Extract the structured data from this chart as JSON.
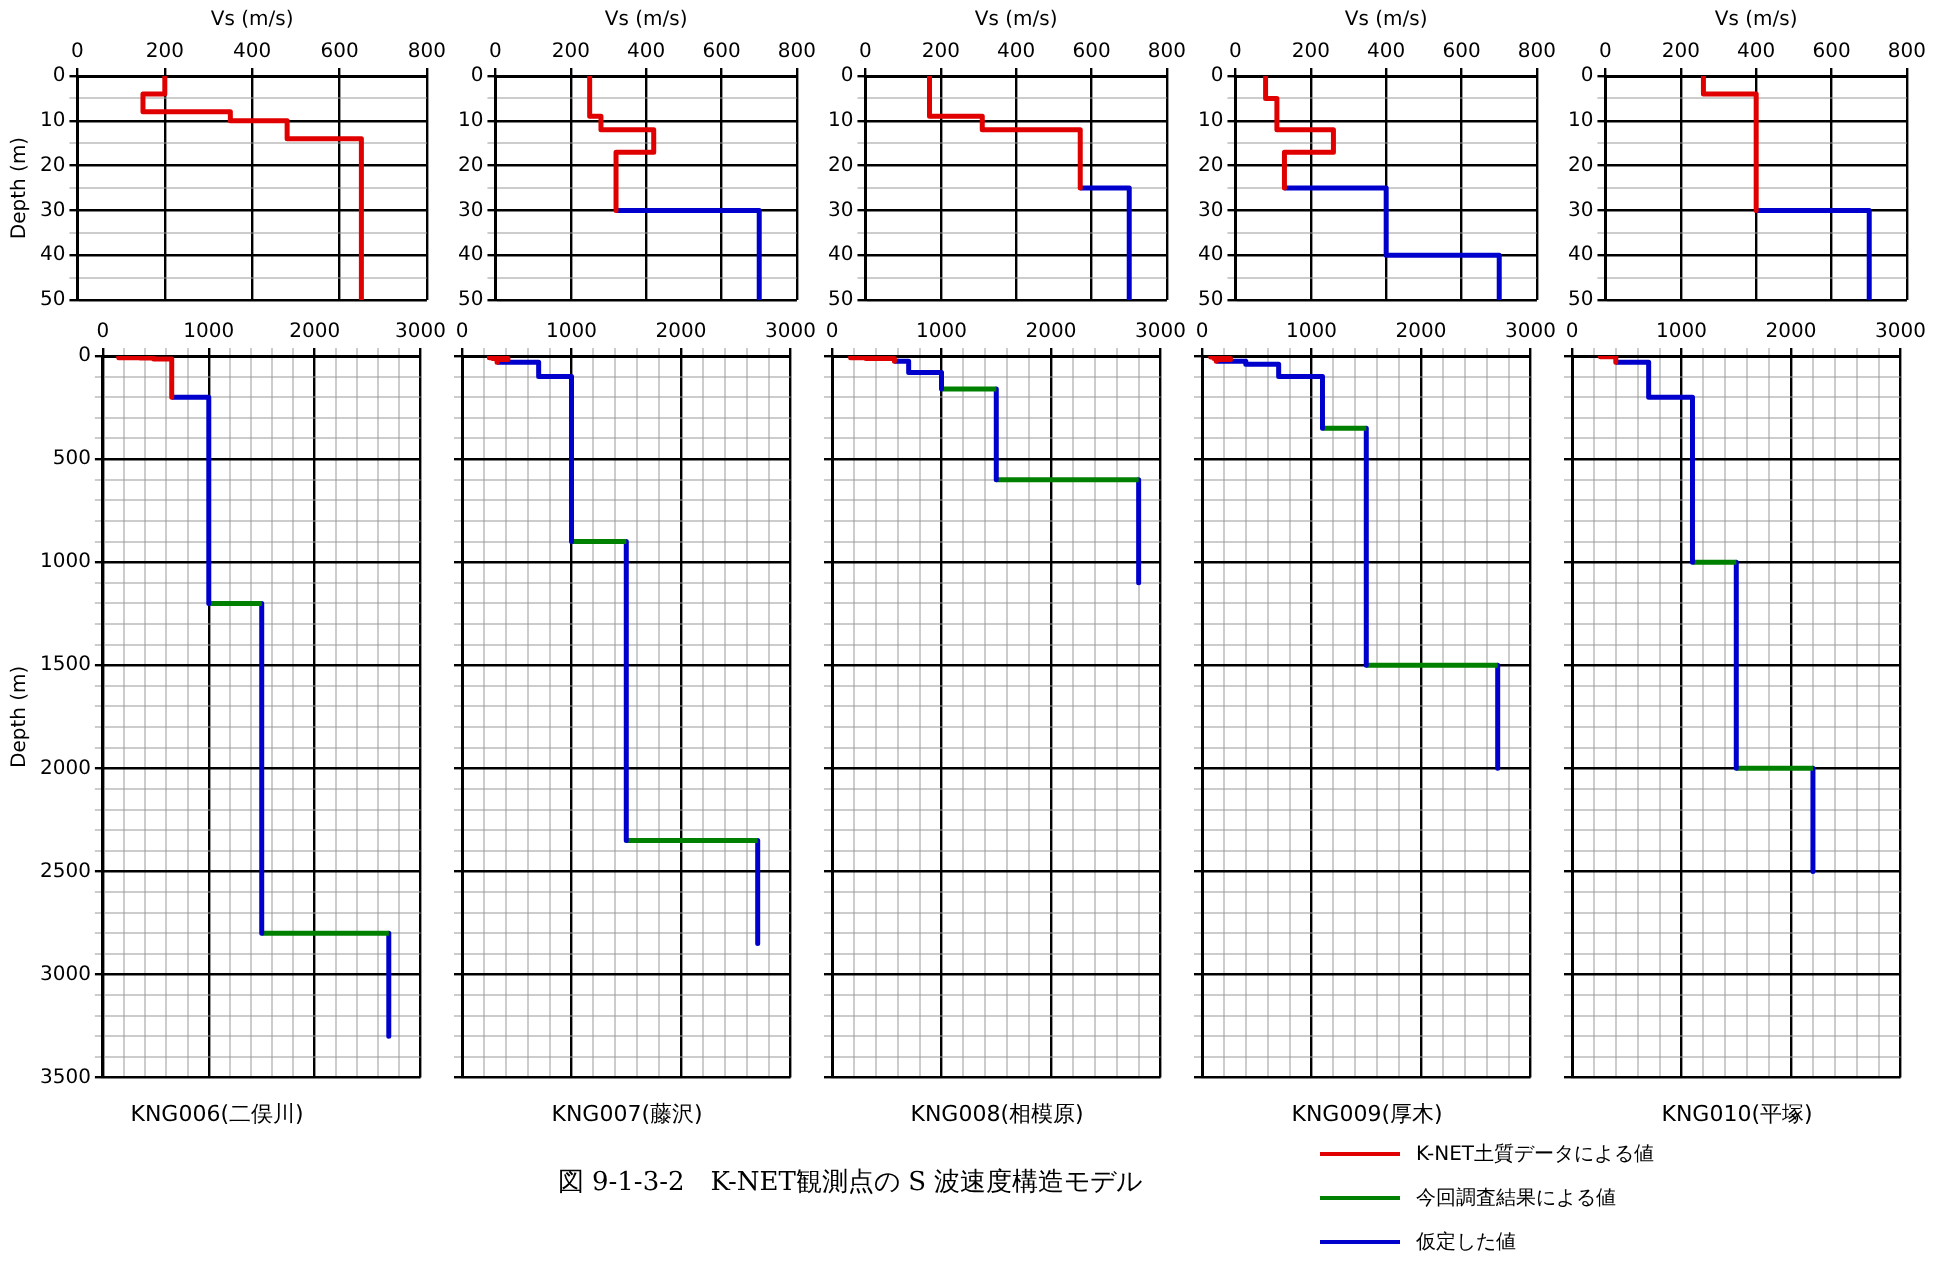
{
  "chart_data": [
    {
      "type": "line",
      "xlabel": "Vs (m/s)",
      "ylabel": "Depth (m)",
      "xlim": [
        0,
        800
      ],
      "ylim": [
        50,
        0
      ],
      "xticks": [
        0,
        200,
        400,
        600,
        800
      ],
      "yticks": [
        0,
        {
          "value": 5,
          "label": null
        },
        10,
        {
          "value": 15,
          "label": null
        },
        20,
        {
          "value": 25,
          "label": null
        },
        30,
        {
          "value": 35,
          "label": null
        },
        40,
        {
          "value": 45,
          "label": null
        },
        50
      ],
      "grid": true,
      "marker": "none",
      "series": [
        {
          "color": "#e00000",
          "x": [
            200,
            200,
            150,
            150,
            350,
            350,
            480,
            480,
            650,
            650
          ],
          "values": [
            0,
            4,
            4,
            8,
            8,
            10,
            10,
            14,
            14,
            50
          ]
        }
      ]
    },
    {
      "type": "line",
      "xlabel": "Vs (m/s)",
      "xlim": [
        0,
        800
      ],
      "ylim": [
        50,
        0
      ],
      "xticks": [
        0,
        200,
        400,
        600,
        800
      ],
      "yticks": [
        0,
        {
          "value": 5,
          "label": null
        },
        10,
        {
          "value": 15,
          "label": null
        },
        20,
        {
          "value": 25,
          "label": null
        },
        30,
        {
          "value": 35,
          "label": null
        },
        40,
        {
          "value": 45,
          "label": null
        },
        50
      ],
      "grid": true,
      "marker": "none",
      "series": [
        {
          "color": "#e00000",
          "x": [
            250,
            250,
            280,
            280,
            420,
            420,
            320,
            320
          ],
          "values": [
            0,
            9,
            9,
            12,
            12,
            17,
            17,
            30
          ]
        },
        {
          "color": "#0000cc",
          "x": [
            320,
            700,
            700
          ],
          "values": [
            30,
            30,
            50
          ]
        }
      ]
    },
    {
      "type": "line",
      "xlabel": "Vs (m/s)",
      "xlim": [
        0,
        800
      ],
      "ylim": [
        50,
        0
      ],
      "xticks": [
        0,
        200,
        400,
        600,
        800
      ],
      "yticks": [
        0,
        {
          "value": 5,
          "label": null
        },
        10,
        {
          "value": 15,
          "label": null
        },
        20,
        {
          "value": 25,
          "label": null
        },
        30,
        {
          "value": 35,
          "label": null
        },
        40,
        {
          "value": 45,
          "label": null
        },
        50
      ],
      "grid": true,
      "marker": "none",
      "series": [
        {
          "color": "#e00000",
          "x": [
            170,
            170,
            310,
            310,
            570,
            570
          ],
          "values": [
            0,
            9,
            9,
            12,
            12,
            25
          ]
        },
        {
          "color": "#0000cc",
          "x": [
            570,
            700,
            700
          ],
          "values": [
            25,
            25,
            50
          ]
        }
      ]
    },
    {
      "type": "line",
      "xlabel": "Vs (m/s)",
      "xlim": [
        0,
        800
      ],
      "ylim": [
        50,
        0
      ],
      "xticks": [
        0,
        200,
        400,
        600,
        800
      ],
      "yticks": [
        0,
        {
          "value": 5,
          "label": null
        },
        10,
        {
          "value": 15,
          "label": null
        },
        20,
        {
          "value": 25,
          "label": null
        },
        30,
        {
          "value": 35,
          "label": null
        },
        40,
        {
          "value": 45,
          "label": null
        },
        50
      ],
      "grid": true,
      "marker": "none",
      "series": [
        {
          "color": "#e00000",
          "x": [
            80,
            80,
            110,
            110,
            260,
            260,
            130,
            130
          ],
          "values": [
            0,
            5,
            5,
            12,
            12,
            17,
            17,
            25
          ]
        },
        {
          "color": "#0000cc",
          "x": [
            130,
            400,
            400,
            700,
            700
          ],
          "values": [
            25,
            25,
            40,
            40,
            50
          ]
        }
      ]
    },
    {
      "type": "line",
      "xlabel": "Vs (m/s)",
      "xlim": [
        0,
        800
      ],
      "ylim": [
        50,
        0
      ],
      "xticks": [
        0,
        200,
        400,
        600,
        800
      ],
      "yticks": [
        0,
        {
          "value": 5,
          "label": null
        },
        10,
        {
          "value": 15,
          "label": null
        },
        20,
        {
          "value": 25,
          "label": null
        },
        30,
        {
          "value": 35,
          "label": null
        },
        40,
        {
          "value": 45,
          "label": null
        },
        50
      ],
      "grid": true,
      "marker": "none",
      "series": [
        {
          "color": "#e00000",
          "x": [
            260,
            260,
            400,
            400
          ],
          "values": [
            0,
            4,
            4,
            30
          ]
        },
        {
          "color": "#0000cc",
          "x": [
            400,
            700,
            700
          ],
          "values": [
            30,
            30,
            50
          ]
        }
      ]
    },
    {
      "type": "line",
      "title": "KNG006(二俣川)",
      "ylabel": "Depth (m)",
      "xlim": [
        0,
        3000
      ],
      "ylim": [
        3500,
        0
      ],
      "xticks": [
        0,
        {
          "value": 200,
          "label": null
        },
        {
          "value": 400,
          "label": null
        },
        {
          "value": 600,
          "label": null
        },
        {
          "value": 800,
          "label": null
        },
        1000,
        {
          "value": 1200,
          "label": null
        },
        {
          "value": 1400,
          "label": null
        },
        {
          "value": 1600,
          "label": null
        },
        {
          "value": 1800,
          "label": null
        },
        2000,
        {
          "value": 2200,
          "label": null
        },
        {
          "value": 2400,
          "label": null
        },
        {
          "value": 2600,
          "label": null
        },
        {
          "value": 2800,
          "label": null
        },
        3000
      ],
      "yticks": [
        0,
        {
          "value": 100,
          "label": null
        },
        {
          "value": 200,
          "label": null
        },
        {
          "value": 300,
          "label": null
        },
        {
          "value": 400,
          "label": null
        },
        500,
        {
          "value": 600,
          "label": null
        },
        {
          "value": 700,
          "label": null
        },
        {
          "value": 800,
          "label": null
        },
        {
          "value": 900,
          "label": null
        },
        1000,
        {
          "value": 1100,
          "label": null
        },
        {
          "value": 1200,
          "label": null
        },
        {
          "value": 1300,
          "label": null
        },
        {
          "value": 1400,
          "label": null
        },
        1500,
        {
          "value": 1600,
          "label": null
        },
        {
          "value": 1700,
          "label": null
        },
        {
          "value": 1800,
          "label": null
        },
        {
          "value": 1900,
          "label": null
        },
        2000,
        {
          "value": 2100,
          "label": null
        },
        {
          "value": 2200,
          "label": null
        },
        {
          "value": 2300,
          "label": null
        },
        {
          "value": 2400,
          "label": null
        },
        2500,
        {
          "value": 2600,
          "label": null
        },
        {
          "value": 2700,
          "label": null
        },
        {
          "value": 2800,
          "label": null
        },
        {
          "value": 2900,
          "label": null
        },
        3000,
        {
          "value": 3100,
          "label": null
        },
        {
          "value": 3200,
          "label": null
        },
        {
          "value": 3300,
          "label": null
        },
        {
          "value": 3400,
          "label": null
        },
        3500
      ],
      "grid": true,
      "marker": "none",
      "series": [
        {
          "color": "#e00000",
          "x": [
            200,
            200,
            150,
            150,
            350,
            350,
            480,
            480,
            650,
            650
          ],
          "values": [
            0,
            4,
            4,
            8,
            8,
            10,
            10,
            14,
            14,
            200
          ]
        },
        {
          "color": "#0000cc",
          "x": [
            650,
            1000,
            1000
          ],
          "values": [
            200,
            200,
            1200
          ]
        },
        {
          "color": "#008000",
          "x": [
            1000,
            1500
          ],
          "values": [
            1200,
            1200
          ]
        },
        {
          "color": "#0000cc",
          "x": [
            1500,
            1500
          ],
          "values": [
            1200,
            2800
          ]
        },
        {
          "color": "#008000",
          "x": [
            1500,
            2700
          ],
          "values": [
            2800,
            2800
          ]
        },
        {
          "color": "#0000cc",
          "x": [
            2700,
            2700
          ],
          "values": [
            2800,
            3300
          ]
        }
      ]
    },
    {
      "type": "line",
      "title": "KNG007(藤沢)",
      "tick_labels": "x",
      "xlim": [
        0,
        3000
      ],
      "ylim": [
        3500,
        0
      ],
      "xticks": [
        0,
        {
          "value": 200,
          "label": null
        },
        {
          "value": 400,
          "label": null
        },
        {
          "value": 600,
          "label": null
        },
        {
          "value": 800,
          "label": null
        },
        1000,
        {
          "value": 1200,
          "label": null
        },
        {
          "value": 1400,
          "label": null
        },
        {
          "value": 1600,
          "label": null
        },
        {
          "value": 1800,
          "label": null
        },
        2000,
        {
          "value": 2200,
          "label": null
        },
        {
          "value": 2400,
          "label": null
        },
        {
          "value": 2600,
          "label": null
        },
        {
          "value": 2800,
          "label": null
        },
        3000
      ],
      "yticks": [
        0,
        {
          "value": 100,
          "label": null
        },
        {
          "value": 200,
          "label": null
        },
        {
          "value": 300,
          "label": null
        },
        {
          "value": 400,
          "label": null
        },
        500,
        {
          "value": 600,
          "label": null
        },
        {
          "value": 700,
          "label": null
        },
        {
          "value": 800,
          "label": null
        },
        {
          "value": 900,
          "label": null
        },
        1000,
        {
          "value": 1100,
          "label": null
        },
        {
          "value": 1200,
          "label": null
        },
        {
          "value": 1300,
          "label": null
        },
        {
          "value": 1400,
          "label": null
        },
        1500,
        {
          "value": 1600,
          "label": null
        },
        {
          "value": 1700,
          "label": null
        },
        {
          "value": 1800,
          "label": null
        },
        {
          "value": 1900,
          "label": null
        },
        2000,
        {
          "value": 2100,
          "label": null
        },
        {
          "value": 2200,
          "label": null
        },
        {
          "value": 2300,
          "label": null
        },
        {
          "value": 2400,
          "label": null
        },
        2500,
        {
          "value": 2600,
          "label": null
        },
        {
          "value": 2700,
          "label": null
        },
        {
          "value": 2800,
          "label": null
        },
        {
          "value": 2900,
          "label": null
        },
        3000,
        {
          "value": 3100,
          "label": null
        },
        {
          "value": 3200,
          "label": null
        },
        {
          "value": 3300,
          "label": null
        },
        {
          "value": 3400,
          "label": null
        },
        3500
      ],
      "grid": true,
      "marker": "none",
      "series": [
        {
          "color": "#e00000",
          "x": [
            250,
            250,
            280,
            280,
            420,
            420,
            320,
            320
          ],
          "values": [
            0,
            9,
            9,
            12,
            12,
            17,
            17,
            30
          ]
        },
        {
          "color": "#0000cc",
          "x": [
            320,
            700,
            700,
            1000,
            1000
          ],
          "values": [
            30,
            30,
            100,
            100,
            900
          ]
        },
        {
          "color": "#008000",
          "x": [
            1000,
            1500
          ],
          "values": [
            900,
            900
          ]
        },
        {
          "color": "#0000cc",
          "x": [
            1500,
            1500
          ],
          "values": [
            900,
            2350
          ]
        },
        {
          "color": "#008000",
          "x": [
            1500,
            2700
          ],
          "values": [
            2350,
            2350
          ]
        },
        {
          "color": "#0000cc",
          "x": [
            2700,
            2700
          ],
          "values": [
            2350,
            2850
          ]
        }
      ]
    },
    {
      "type": "line",
      "title": "KNG008(相模原)",
      "tick_labels": "x",
      "xlim": [
        0,
        3000
      ],
      "ylim": [
        3500,
        0
      ],
      "xticks": [
        0,
        {
          "value": 200,
          "label": null
        },
        {
          "value": 400,
          "label": null
        },
        {
          "value": 600,
          "label": null
        },
        {
          "value": 800,
          "label": null
        },
        1000,
        {
          "value": 1200,
          "label": null
        },
        {
          "value": 1400,
          "label": null
        },
        {
          "value": 1600,
          "label": null
        },
        {
          "value": 1800,
          "label": null
        },
        2000,
        {
          "value": 2200,
          "label": null
        },
        {
          "value": 2400,
          "label": null
        },
        {
          "value": 2600,
          "label": null
        },
        {
          "value": 2800,
          "label": null
        },
        3000
      ],
      "yticks": [
        0,
        {
          "value": 100,
          "label": null
        },
        {
          "value": 200,
          "label": null
        },
        {
          "value": 300,
          "label": null
        },
        {
          "value": 400,
          "label": null
        },
        500,
        {
          "value": 600,
          "label": null
        },
        {
          "value": 700,
          "label": null
        },
        {
          "value": 800,
          "label": null
        },
        {
          "value": 900,
          "label": null
        },
        1000,
        {
          "value": 1100,
          "label": null
        },
        {
          "value": 1200,
          "label": null
        },
        {
          "value": 1300,
          "label": null
        },
        {
          "value": 1400,
          "label": null
        },
        1500,
        {
          "value": 1600,
          "label": null
        },
        {
          "value": 1700,
          "label": null
        },
        {
          "value": 1800,
          "label": null
        },
        {
          "value": 1900,
          "label": null
        },
        2000,
        {
          "value": 2100,
          "label": null
        },
        {
          "value": 2200,
          "label": null
        },
        {
          "value": 2300,
          "label": null
        },
        {
          "value": 2400,
          "label": null
        },
        2500,
        {
          "value": 2600,
          "label": null
        },
        {
          "value": 2700,
          "label": null
        },
        {
          "value": 2800,
          "label": null
        },
        {
          "value": 2900,
          "label": null
        },
        3000,
        {
          "value": 3100,
          "label": null
        },
        {
          "value": 3200,
          "label": null
        },
        {
          "value": 3300,
          "label": null
        },
        {
          "value": 3400,
          "label": null
        },
        3500
      ],
      "grid": true,
      "marker": "none",
      "series": [
        {
          "color": "#e00000",
          "x": [
            170,
            170,
            310,
            310,
            570,
            570
          ],
          "values": [
            0,
            9,
            9,
            12,
            12,
            25
          ]
        },
        {
          "color": "#0000cc",
          "x": [
            570,
            700,
            700,
            1000,
            1000
          ],
          "values": [
            25,
            25,
            80,
            80,
            160
          ]
        },
        {
          "color": "#008000",
          "x": [
            1000,
            1500
          ],
          "values": [
            160,
            160
          ]
        },
        {
          "color": "#0000cc",
          "x": [
            1500,
            1500
          ],
          "values": [
            160,
            600
          ]
        },
        {
          "color": "#008000",
          "x": [
            1500,
            2800
          ],
          "values": [
            600,
            600
          ]
        },
        {
          "color": "#0000cc",
          "x": [
            2800,
            2800
          ],
          "values": [
            600,
            1100
          ]
        }
      ]
    },
    {
      "type": "line",
      "title": "KNG009(厚木)",
      "tick_labels": "x",
      "xlim": [
        0,
        3000
      ],
      "ylim": [
        3500,
        0
      ],
      "xticks": [
        0,
        {
          "value": 200,
          "label": null
        },
        {
          "value": 400,
          "label": null
        },
        {
          "value": 600,
          "label": null
        },
        {
          "value": 800,
          "label": null
        },
        1000,
        {
          "value": 1200,
          "label": null
        },
        {
          "value": 1400,
          "label": null
        },
        {
          "value": 1600,
          "label": null
        },
        {
          "value": 1800,
          "label": null
        },
        2000,
        {
          "value": 2200,
          "label": null
        },
        {
          "value": 2400,
          "label": null
        },
        {
          "value": 2600,
          "label": null
        },
        {
          "value": 2800,
          "label": null
        },
        3000
      ],
      "yticks": [
        0,
        {
          "value": 100,
          "label": null
        },
        {
          "value": 200,
          "label": null
        },
        {
          "value": 300,
          "label": null
        },
        {
          "value": 400,
          "label": null
        },
        500,
        {
          "value": 600,
          "label": null
        },
        {
          "value": 700,
          "label": null
        },
        {
          "value": 800,
          "label": null
        },
        {
          "value": 900,
          "label": null
        },
        1000,
        {
          "value": 1100,
          "label": null
        },
        {
          "value": 1200,
          "label": null
        },
        {
          "value": 1300,
          "label": null
        },
        {
          "value": 1400,
          "label": null
        },
        1500,
        {
          "value": 1600,
          "label": null
        },
        {
          "value": 1700,
          "label": null
        },
        {
          "value": 1800,
          "label": null
        },
        {
          "value": 1900,
          "label": null
        },
        2000,
        {
          "value": 2100,
          "label": null
        },
        {
          "value": 2200,
          "label": null
        },
        {
          "value": 2300,
          "label": null
        },
        {
          "value": 2400,
          "label": null
        },
        2500,
        {
          "value": 2600,
          "label": null
        },
        {
          "value": 2700,
          "label": null
        },
        {
          "value": 2800,
          "label": null
        },
        {
          "value": 2900,
          "label": null
        },
        3000,
        {
          "value": 3100,
          "label": null
        },
        {
          "value": 3200,
          "label": null
        },
        {
          "value": 3300,
          "label": null
        },
        {
          "value": 3400,
          "label": null
        },
        3500
      ],
      "grid": true,
      "marker": "none",
      "series": [
        {
          "color": "#e00000",
          "x": [
            80,
            80,
            110,
            110,
            260,
            260,
            130,
            130
          ],
          "values": [
            0,
            5,
            5,
            12,
            12,
            17,
            17,
            25
          ]
        },
        {
          "color": "#0000cc",
          "x": [
            130,
            400,
            400,
            700,
            700,
            1100,
            1100
          ],
          "values": [
            25,
            25,
            40,
            40,
            100,
            100,
            350
          ]
        },
        {
          "color": "#008000",
          "x": [
            1100,
            1500
          ],
          "values": [
            350,
            350
          ]
        },
        {
          "color": "#0000cc",
          "x": [
            1500,
            1500
          ],
          "values": [
            350,
            1500
          ]
        },
        {
          "color": "#008000",
          "x": [
            1500,
            2700
          ],
          "values": [
            1500,
            1500
          ]
        },
        {
          "color": "#0000cc",
          "x": [
            2700,
            2700
          ],
          "values": [
            1500,
            2000
          ]
        }
      ]
    },
    {
      "type": "line",
      "title": "KNG010(平塚)",
      "tick_labels": "x",
      "xlim": [
        0,
        3000
      ],
      "ylim": [
        3500,
        0
      ],
      "xticks": [
        0,
        {
          "value": 200,
          "label": null
        },
        {
          "value": 400,
          "label": null
        },
        {
          "value": 600,
          "label": null
        },
        {
          "value": 800,
          "label": null
        },
        1000,
        {
          "value": 1200,
          "label": null
        },
        {
          "value": 1400,
          "label": null
        },
        {
          "value": 1600,
          "label": null
        },
        {
          "value": 1800,
          "label": null
        },
        2000,
        {
          "value": 2200,
          "label": null
        },
        {
          "value": 2400,
          "label": null
        },
        {
          "value": 2600,
          "label": null
        },
        {
          "value": 2800,
          "label": null
        },
        3000
      ],
      "yticks": [
        0,
        {
          "value": 100,
          "label": null
        },
        {
          "value": 200,
          "label": null
        },
        {
          "value": 300,
          "label": null
        },
        {
          "value": 400,
          "label": null
        },
        500,
        {
          "value": 600,
          "label": null
        },
        {
          "value": 700,
          "label": null
        },
        {
          "value": 800,
          "label": null
        },
        {
          "value": 900,
          "label": null
        },
        1000,
        {
          "value": 1100,
          "label": null
        },
        {
          "value": 1200,
          "label": null
        },
        {
          "value": 1300,
          "label": null
        },
        {
          "value": 1400,
          "label": null
        },
        1500,
        {
          "value": 1600,
          "label": null
        },
        {
          "value": 1700,
          "label": null
        },
        {
          "value": 1800,
          "label": null
        },
        {
          "value": 1900,
          "label": null
        },
        2000,
        {
          "value": 2100,
          "label": null
        },
        {
          "value": 2200,
          "label": null
        },
        {
          "value": 2300,
          "label": null
        },
        {
          "value": 2400,
          "label": null
        },
        2500,
        {
          "value": 2600,
          "label": null
        },
        {
          "value": 2700,
          "label": null
        },
        {
          "value": 2800,
          "label": null
        },
        {
          "value": 2900,
          "label": null
        },
        3000,
        {
          "value": 3100,
          "label": null
        },
        {
          "value": 3200,
          "label": null
        },
        {
          "value": 3300,
          "label": null
        },
        {
          "value": 3400,
          "label": null
        },
        3500
      ],
      "grid": true,
      "marker": "none",
      "legend": "bottom",
      "annotations": [
        "図 9-1-3-2　K-NET観測点の S 波速度構造モデル"
      ],
      "series": [
        {
          "name": "K-NET土質データによる値",
          "color": "#e00000",
          "x": [
            260,
            260,
            400,
            400
          ],
          "values": [
            0,
            4,
            4,
            30
          ]
        },
        {
          "color": "#0000cc",
          "x": [
            400,
            700,
            700,
            1100,
            1100
          ],
          "values": [
            30,
            30,
            200,
            200,
            1000
          ]
        },
        {
          "name": "今回調査結果による値",
          "color": "#008000",
          "x": [
            1100,
            1500
          ],
          "values": [
            1000,
            1000
          ]
        },
        {
          "name": "仮定した値",
          "color": "#0000cc",
          "x": [
            1500,
            1500
          ],
          "values": [
            1000,
            2000
          ]
        },
        {
          "color": "#008000",
          "x": [
            1500,
            2200
          ],
          "values": [
            2000,
            2000
          ]
        },
        {
          "color": "#0000cc",
          "x": [
            2200,
            2200
          ],
          "values": [
            2000,
            2500
          ]
        }
      ]
    }
  ]
}
